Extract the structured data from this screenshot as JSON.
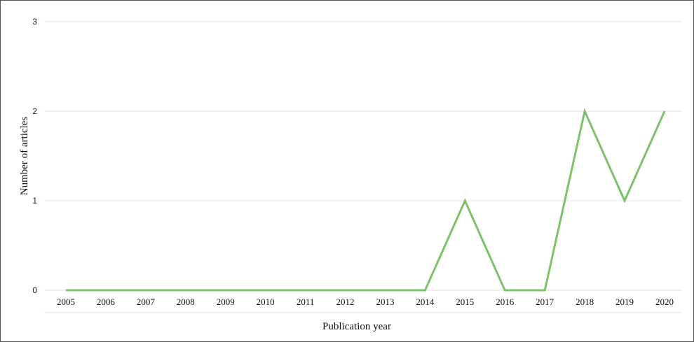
{
  "chart_data": {
    "type": "line",
    "x": [
      "2005",
      "2006",
      "2007",
      "2008",
      "2009",
      "2010",
      "2011",
      "2012",
      "2013",
      "2014",
      "2015",
      "2016",
      "2017",
      "2018",
      "2019",
      "2020"
    ],
    "series": [
      {
        "values": [
          0,
          0,
          0,
          0,
          0,
          0,
          0,
          0,
          0,
          0,
          1,
          0,
          0,
          2,
          1,
          2
        ],
        "color": "#7dc26a"
      }
    ],
    "xlabel": "Publication year",
    "ylabel": "Number of articles",
    "ylim": [
      0,
      3
    ],
    "yticks": [
      0,
      1,
      2,
      3
    ],
    "grid": true,
    "gridline_color": "#e3e3e3",
    "legend": "none"
  }
}
